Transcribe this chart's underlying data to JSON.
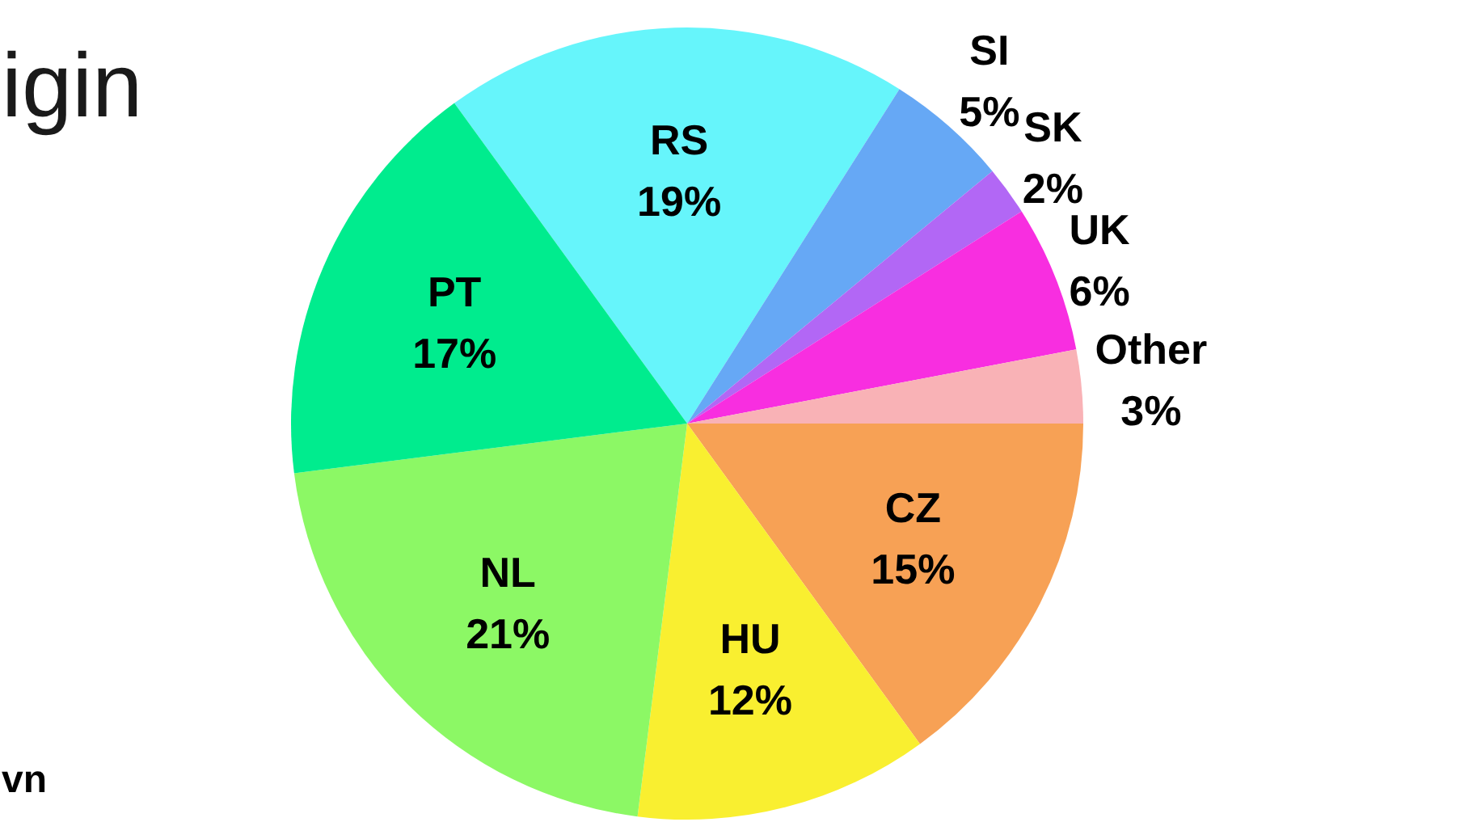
{
  "chart_data": {
    "type": "pie",
    "title": "igin",
    "annotations": [
      "vn"
    ],
    "categories": [
      "RS",
      "SI",
      "SK",
      "UK",
      "Other",
      "CZ",
      "HU",
      "NL",
      "PT"
    ],
    "values": [
      19,
      5,
      2,
      6,
      3,
      15,
      12,
      21,
      17
    ],
    "colors": [
      "#66f5fb",
      "#66a8f5",
      "#b267f5",
      "#f82ee0",
      "#f9b2b6",
      "#f7a155",
      "#f9ef30",
      "#8cf865",
      "#00ec8e"
    ],
    "value_labels": [
      "19%",
      "5%",
      "2%",
      "6%",
      "3%",
      "15%",
      "12%",
      "21%",
      "17%"
    ]
  }
}
